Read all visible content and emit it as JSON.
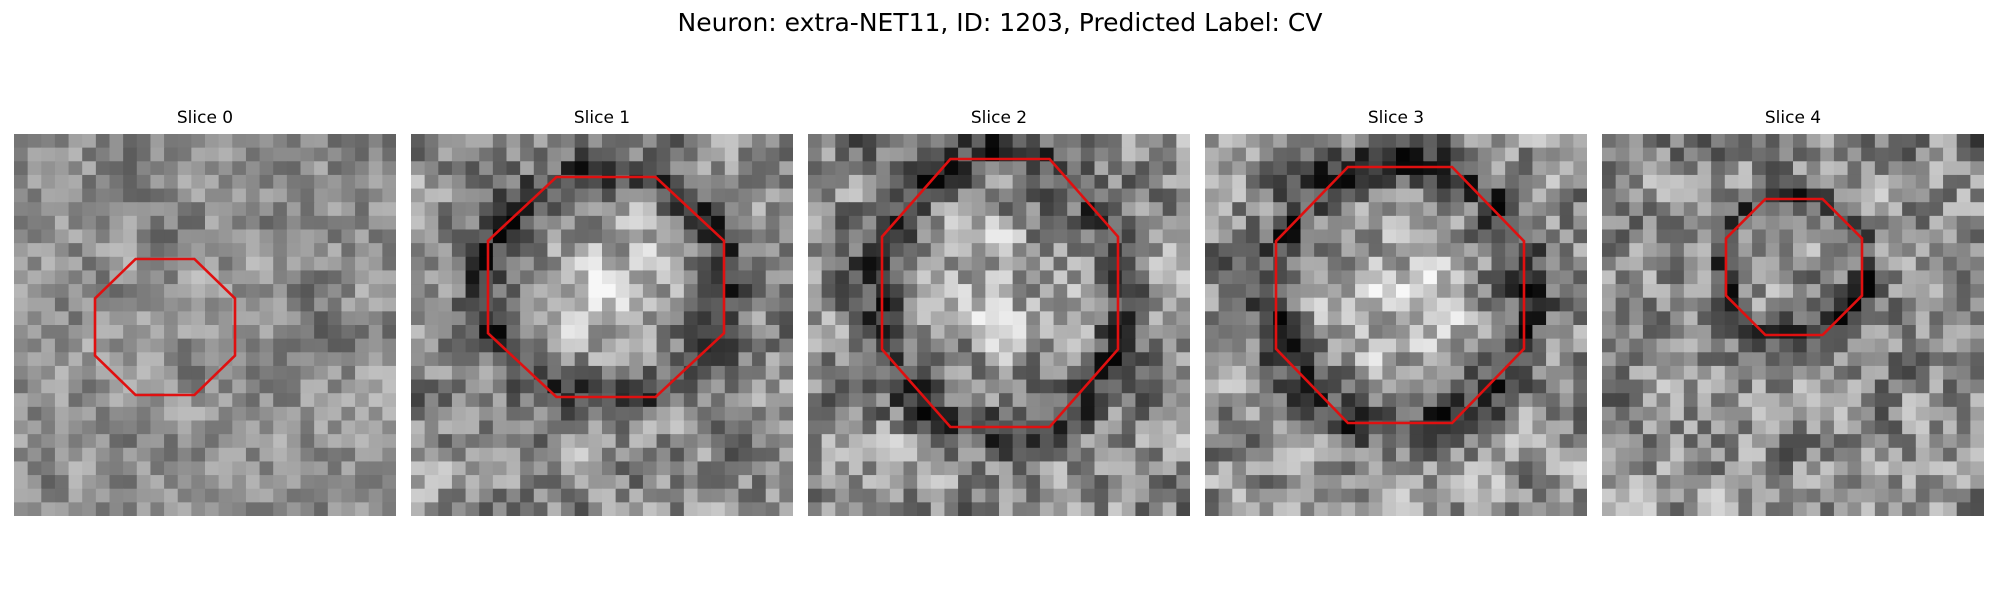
{
  "figure": {
    "title": "Neuron: extra-NET11, ID: 1203, Predicted Label: CV",
    "outline_color": "#e01010",
    "panels": [
      {
        "title": "Slice 0",
        "seed": 11,
        "contrast": 0.55,
        "dark_ring": false,
        "center_bright": 0.04
      },
      {
        "title": "Slice 1",
        "seed": 23,
        "contrast": 0.75,
        "dark_ring": true,
        "center_bright": 0.3
      },
      {
        "title": "Slice 2",
        "seed": 37,
        "contrast": 0.85,
        "dark_ring": true,
        "center_bright": 0.18
      },
      {
        "title": "Slice 3",
        "seed": 51,
        "contrast": 0.85,
        "dark_ring": true,
        "center_bright": 0.28
      },
      {
        "title": "Slice 4",
        "seed": 67,
        "contrast": 0.8,
        "dark_ring": true,
        "center_bright": 0.02
      }
    ]
  }
}
